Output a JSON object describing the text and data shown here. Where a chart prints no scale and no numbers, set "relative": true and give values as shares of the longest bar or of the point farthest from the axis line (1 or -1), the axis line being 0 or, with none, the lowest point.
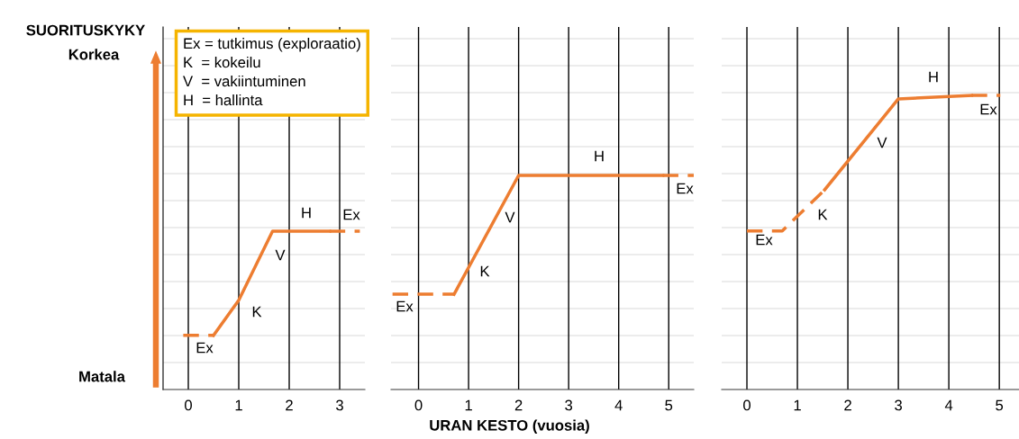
{
  "chart_data": [
    {
      "type": "line",
      "xlabel": "URAN KESTO (vuosia)",
      "xlim": [
        -0.5,
        3.5
      ],
      "xticks": [
        0,
        1,
        2,
        3
      ],
      "relative": true,
      "grid": true,
      "series": [
        {
          "color": "#ed7d31",
          "line_style": "dashed",
          "x": [
            -0.1,
            0.5
          ],
          "values": [
            0.342,
            0.342
          ]
        },
        {
          "color": "#ed7d31",
          "line_style": "solid",
          "x": [
            0.5,
            1.0,
            1.67,
            2.8
          ],
          "values": [
            0.342,
            0.564,
            1.0,
            1.0
          ]
        },
        {
          "color": "#ed7d31",
          "line_style": "dashed",
          "x": [
            2.8,
            3.4
          ],
          "values": [
            1.0,
            1.0
          ]
        }
      ],
      "annotations": [
        "Ex = tutkimus (exploraatio)\nK  = kokeilu\nV  = vakiintuminen\nH  = hallinta",
        "SUORITUSKYKY",
        "Korkea",
        "Matala",
        "Ex",
        "K",
        "V",
        "H",
        "Ex"
      ]
    },
    {
      "type": "line",
      "xlim": [
        -0.55,
        5.5
      ],
      "xticks": [
        0,
        1,
        2,
        3,
        4,
        5
      ],
      "relative": true,
      "grid": true,
      "series": [
        {
          "color": "#ed7d31",
          "line_style": "dashed",
          "x": [
            -0.52,
            0.71
          ],
          "values": [
            0.445,
            0.445
          ]
        },
        {
          "color": "#ed7d31",
          "line_style": "solid",
          "x": [
            0.71,
            2.0,
            4.88
          ],
          "values": [
            0.445,
            1.0,
            1.0
          ]
        },
        {
          "color": "#ed7d31",
          "line_style": "dashed",
          "x": [
            4.88,
            5.5
          ],
          "values": [
            1.0,
            1.0
          ]
        }
      ],
      "annotations": [
        "Ex",
        "K",
        "V",
        "H",
        "Ex"
      ]
    },
    {
      "type": "line",
      "xlim": [
        -0.5,
        5.39
      ],
      "xticks": [
        0,
        1,
        2,
        3,
        4,
        5
      ],
      "relative": true,
      "grid": true,
      "series": [
        {
          "color": "#ed7d31",
          "line_style": "dashed",
          "x": [
            0.0,
            0.7,
            1.54
          ],
          "values": [
            0.539,
            0.539,
            0.679
          ]
        },
        {
          "color": "#ed7d31",
          "line_style": "solid",
          "x": [
            1.54,
            3.0,
            4.45
          ],
          "values": [
            0.679,
            0.988,
            1.0
          ]
        },
        {
          "color": "#ed7d31",
          "line_style": "dashed",
          "x": [
            4.45,
            5.02
          ],
          "values": [
            1.0,
            1.0
          ]
        }
      ],
      "annotations": [
        "Ex",
        "K",
        "V",
        "H",
        "Ex"
      ]
    }
  ]
}
